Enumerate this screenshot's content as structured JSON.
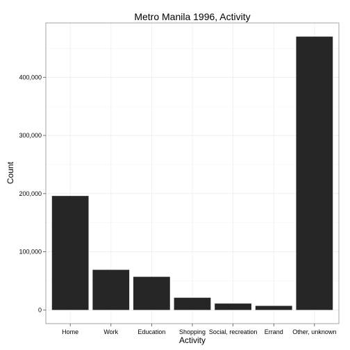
{
  "chart_data": {
    "type": "bar",
    "title": "Metro Manila 1996, Activity",
    "xlabel": "Activity",
    "ylabel": "Count",
    "categories": [
      "Home",
      "Work",
      "Education",
      "Shopping",
      "Social, recreation",
      "Errand",
      "Other, unknown"
    ],
    "values": [
      196000,
      69000,
      57000,
      21000,
      11000,
      7000,
      470000
    ],
    "ylim": [
      -23500,
      493500
    ],
    "yticks": [
      0,
      100000,
      200000,
      300000,
      400000
    ],
    "ytick_labels": [
      "0",
      "100,000",
      "200,000",
      "300,000",
      "400,000"
    ],
    "grid": true,
    "legend": "none",
    "colors": {
      "bar": "#262626",
      "grid": "#ececec",
      "panel_border": "#9a9a9a"
    }
  }
}
